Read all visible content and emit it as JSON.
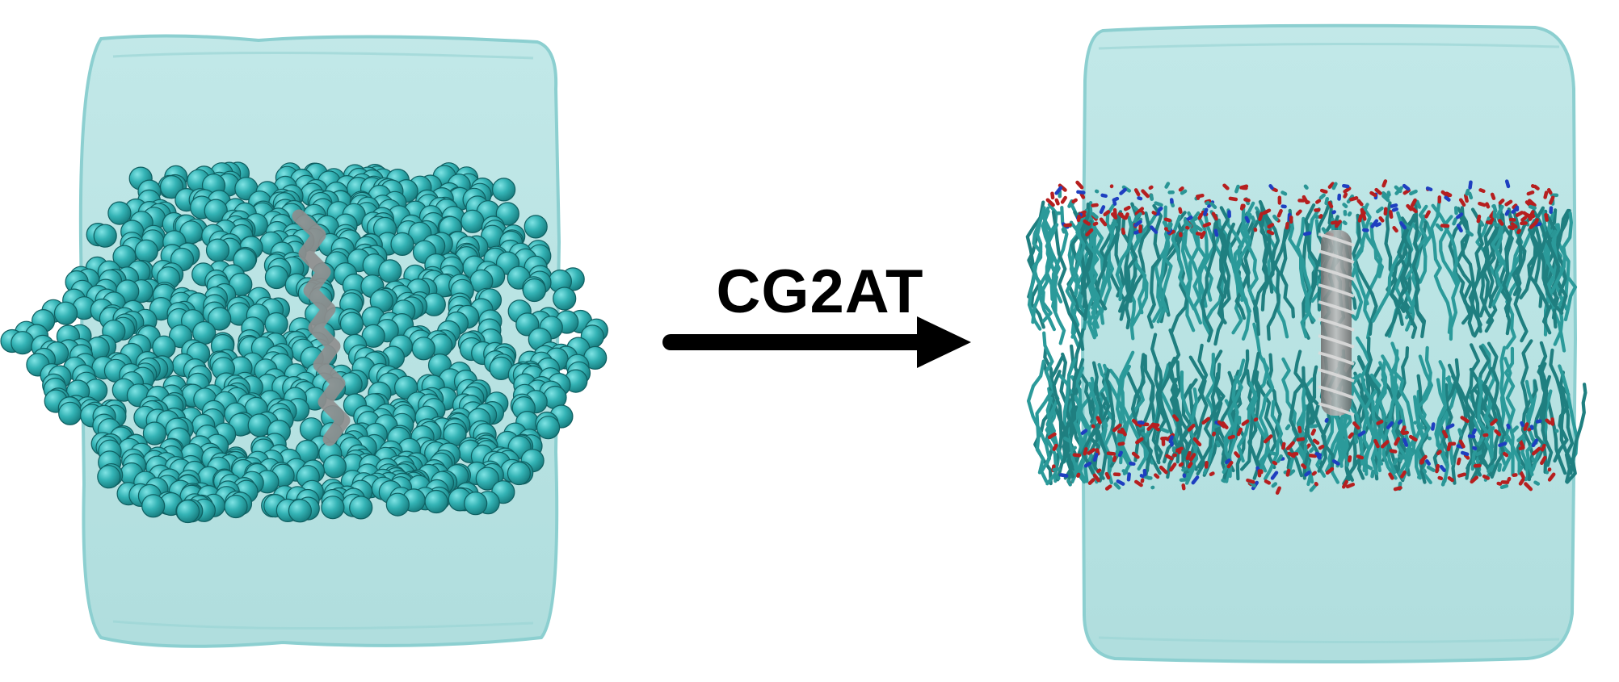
{
  "transform": {
    "label": "CG2AT",
    "arrow_color": "#000000"
  },
  "panels": {
    "left": {
      "water_color": "#a8dcdc",
      "bead_color": "#35b5b7",
      "helix_color": "#8e8e8e"
    },
    "right": {
      "water_color": "#a8dcdc",
      "lipid_color": "#2e9c9c",
      "oxygen_color": "#c42222",
      "nitrogen_color": "#2046c8",
      "helix_color": "#9a9a9a"
    }
  }
}
